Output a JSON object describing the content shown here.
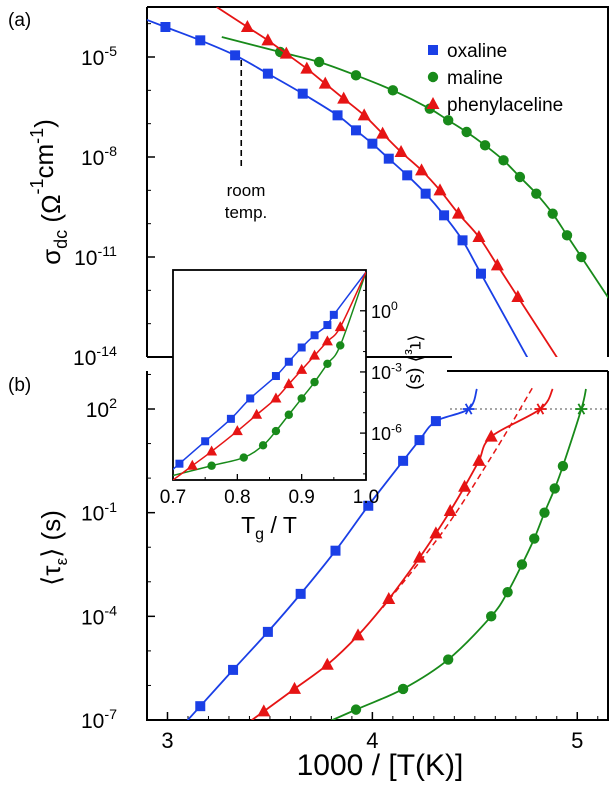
{
  "panel_labels": {
    "a": "(a)",
    "b": "(b)"
  },
  "x_axis": {
    "label": "1000 / [T(K)]",
    "range": [
      2.9,
      5.15
    ],
    "ticks": [
      3,
      4,
      5
    ]
  },
  "colors": {
    "oxaline": "#1a3fe6",
    "maline": "#188a1a",
    "phenylaceline": "#e61414"
  },
  "room_temp_annotation": {
    "line1": "room",
    "line2": "temp.",
    "x": 3.36
  },
  "chart_data": [
    {
      "panel": "(a)",
      "type": "scatter",
      "ylabel": "σdc (Ω⁻¹cm⁻¹)",
      "yscale": "log",
      "ylim_log10": [
        -14,
        -3.5
      ],
      "y_ticks": [
        "10-5",
        "10-8",
        "10-11",
        "10-14"
      ],
      "legend": "top-right",
      "series": [
        {
          "name": "oxaline",
          "marker": "square",
          "x": [
            2.99,
            3.16,
            3.33,
            3.49,
            3.66,
            3.83,
            3.92,
            4.0,
            4.08,
            4.17,
            4.26,
            4.35,
            4.44,
            4.53
          ],
          "y_log10": [
            -4.1,
            -4.5,
            -4.95,
            -5.5,
            -6.1,
            -6.75,
            -7.2,
            -7.6,
            -8.05,
            -8.55,
            -9.1,
            -9.75,
            -10.5,
            -11.5
          ]
        },
        {
          "name": "maline",
          "marker": "circle",
          "x": [
            3.55,
            3.74,
            3.92,
            4.1,
            4.28,
            4.37,
            4.46,
            4.55,
            4.64,
            4.72,
            4.8,
            4.88,
            4.95,
            5.02
          ],
          "y_log10": [
            -4.85,
            -5.15,
            -5.55,
            -6.0,
            -6.55,
            -6.9,
            -7.25,
            -7.65,
            -8.1,
            -8.6,
            -9.1,
            -9.7,
            -10.35,
            -11.0
          ]
        },
        {
          "name": "phenylaceline",
          "marker": "triangle",
          "x": [
            3.39,
            3.49,
            3.58,
            3.68,
            3.77,
            3.86,
            3.96,
            4.05,
            4.14,
            4.24,
            4.33,
            4.42,
            4.52,
            4.61,
            4.71
          ],
          "y_log10": [
            -4.1,
            -4.5,
            -4.9,
            -5.35,
            -5.8,
            -6.25,
            -6.75,
            -7.3,
            -7.85,
            -8.4,
            -9.0,
            -9.7,
            -10.4,
            -11.25,
            -12.2
          ]
        }
      ]
    },
    {
      "panel": "(b)",
      "type": "scatter",
      "ylabel": "⟨τε⟩ (s)",
      "yscale": "log",
      "ylim_log10": [
        -7,
        3.1
      ],
      "y_ticks": [
        "102",
        "10-1",
        "10-4",
        "10-7"
      ],
      "series": [
        {
          "name": "oxaline",
          "marker": "square",
          "x": [
            3.16,
            3.32,
            3.49,
            3.65,
            3.82,
            3.98,
            4.15,
            4.23,
            4.31
          ],
          "y_log10": [
            -6.6,
            -5.55,
            -4.45,
            -3.35,
            -2.1,
            -0.8,
            0.5,
            1.1,
            1.65
          ],
          "fit_end": {
            "x": 4.47,
            "y_log10": 2.0
          }
        },
        {
          "name": "maline",
          "marker": "circle",
          "x": [
            3.92,
            4.15,
            4.37,
            4.58,
            4.66,
            4.73,
            4.79,
            4.84,
            4.89,
            4.93
          ],
          "y_log10": [
            -6.7,
            -6.1,
            -5.25,
            -4.0,
            -3.3,
            -2.5,
            -1.75,
            -1.0,
            -0.3,
            0.35
          ],
          "fit_end": {
            "x": 5.02,
            "y_log10": 2.0
          }
        },
        {
          "name": "phenylaceline",
          "marker": "triangle",
          "x": [
            3.47,
            3.62,
            3.78,
            3.93,
            4.08,
            4.23,
            4.31,
            4.38,
            4.45,
            4.52,
            4.58
          ],
          "y_log10": [
            -6.75,
            -6.1,
            -5.4,
            -4.55,
            -3.5,
            -2.3,
            -1.6,
            -0.95,
            -0.25,
            0.5,
            1.2
          ],
          "fit_end": {
            "x": 4.82,
            "y_log10": 2.0
          }
        }
      ]
    },
    {
      "panel": "inset",
      "type": "scatter",
      "xlabel": "Tg / T",
      "xlim": [
        0.7,
        1.0
      ],
      "x_ticks": [
        "0.7",
        "0.8",
        "0.9",
        "1.0"
      ],
      "ylabel": "⟨τε⟩ (s)",
      "yscale": "log",
      "ylim_log10": [
        -8.3,
        2.0
      ],
      "y_ticks": [
        "100",
        "10-3",
        "10-6"
      ],
      "series": [
        {
          "name": "oxaline",
          "x": [
            0.71,
            0.75,
            0.79,
            0.82,
            0.86,
            0.88,
            0.9,
            0.92,
            0.94,
            0.95
          ],
          "y_log10": [
            -7.5,
            -6.4,
            -5.3,
            -4.3,
            -3.2,
            -2.5,
            -1.8,
            -1.2,
            -0.7,
            -0.2
          ]
        },
        {
          "name": "maline",
          "x": [
            0.76,
            0.81,
            0.84,
            0.86,
            0.88,
            0.9,
            0.92,
            0.94,
            0.96
          ],
          "y_log10": [
            -7.6,
            -7.2,
            -6.6,
            -5.9,
            -5.1,
            -4.3,
            -3.5,
            -2.6,
            -1.7
          ]
        },
        {
          "name": "phenylaceline",
          "x": [
            0.73,
            0.76,
            0.8,
            0.83,
            0.86,
            0.88,
            0.9,
            0.92,
            0.94,
            0.96
          ],
          "y_log10": [
            -7.6,
            -6.9,
            -5.9,
            -5.1,
            -4.3,
            -3.6,
            -2.9,
            -2.2,
            -1.5,
            -0.8
          ]
        }
      ]
    }
  ]
}
